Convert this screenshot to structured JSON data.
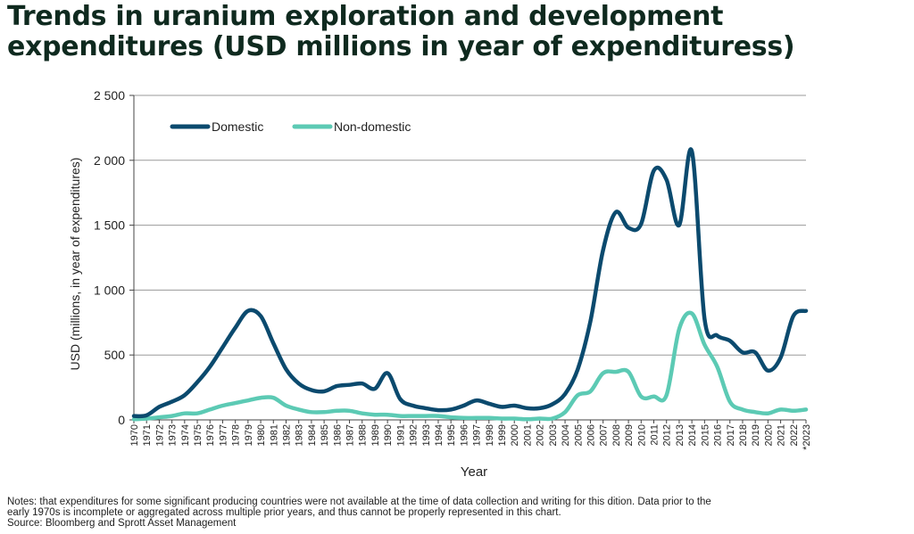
{
  "title_line1": "Trends in uranium exploration and development",
  "title_line2": "expenditures (USD millions in year of expendituress)",
  "notes_line1": "Notes: that expenditures for some significant producing countries were not available at the time of data collection and writing for this dition. Data prior to the",
  "notes_line2": "early 1970s is incomplete or aggregated across multiple prior years, and thus cannot be properly represented in this chart.",
  "source": "Source: Bloomberg and Sprott Asset Management",
  "chart_data": {
    "type": "line",
    "title": "Trends in uranium exploration and development expenditures (USD millions in year of expendituress)",
    "xlabel": "Year",
    "ylabel": "USD (millions, in year of expenditures)",
    "ylim": [
      0,
      2500
    ],
    "yticks": [
      0,
      500,
      1000,
      1500,
      2000,
      2500
    ],
    "ytick_labels": [
      "0",
      "500",
      "1 000",
      "1 500",
      "2 000",
      "2 500"
    ],
    "grid": "horizontal",
    "legend_position": "top-left",
    "categories": [
      "1970",
      "1971",
      "1972",
      "1973",
      "1974",
      "1975",
      "1976",
      "1977",
      "1978",
      "1979",
      "1980",
      "1981",
      "1982",
      "1983",
      "1984",
      "1985",
      "1986",
      "1987",
      "1988",
      "1989",
      "1990",
      "1991",
      "1992",
      "1993",
      "1994",
      "1995",
      "1996",
      "1997",
      "1998",
      "1999",
      "2000",
      "2001",
      "2002",
      "2003",
      "2004",
      "2005",
      "2006",
      "2007",
      "2008",
      "2009",
      "2010",
      "2011",
      "2012",
      "2013",
      "2014",
      "2015",
      "2016",
      "2017",
      "2018",
      "2019",
      "2020",
      "2021",
      "2022",
      "*2023"
    ],
    "series": [
      {
        "name": "Domestic",
        "color": "#0b4a6e",
        "values": [
          30,
          35,
          100,
          140,
          190,
          290,
          410,
          560,
          710,
          840,
          800,
          590,
          390,
          280,
          230,
          220,
          260,
          270,
          280,
          240,
          360,
          160,
          110,
          90,
          75,
          80,
          110,
          150,
          125,
          100,
          110,
          90,
          90,
          120,
          200,
          390,
          760,
          1310,
          1600,
          1480,
          1510,
          1920,
          1850,
          1500,
          2070,
          780,
          650,
          610,
          520,
          520,
          380,
          480,
          800,
          840
        ]
      },
      {
        "name": "Non-domestic",
        "color": "#5ccab4",
        "values": [
          5,
          10,
          20,
          30,
          50,
          50,
          80,
          110,
          130,
          150,
          170,
          170,
          110,
          80,
          60,
          60,
          70,
          70,
          50,
          40,
          40,
          30,
          30,
          30,
          30,
          20,
          15,
          15,
          15,
          10,
          10,
          5,
          10,
          10,
          60,
          190,
          220,
          360,
          370,
          370,
          180,
          180,
          190,
          700,
          820,
          580,
          410,
          140,
          80,
          60,
          50,
          80,
          70,
          80
        ]
      }
    ]
  }
}
